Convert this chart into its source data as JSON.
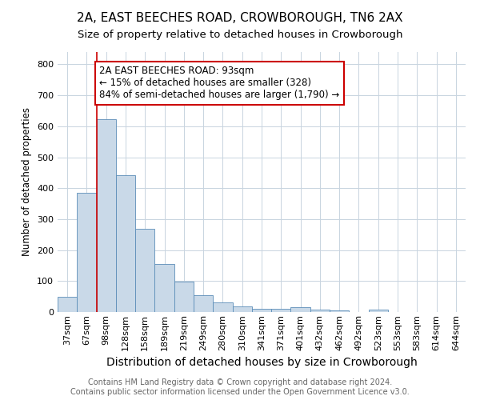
{
  "title": "2A, EAST BEECHES ROAD, CROWBOROUGH, TN6 2AX",
  "subtitle": "Size of property relative to detached houses in Crowborough",
  "xlabel": "Distribution of detached houses by size in Crowborough",
  "ylabel": "Number of detached properties",
  "categories": [
    "37sqm",
    "67sqm",
    "98sqm",
    "128sqm",
    "158sqm",
    "189sqm",
    "219sqm",
    "249sqm",
    "280sqm",
    "310sqm",
    "341sqm",
    "371sqm",
    "401sqm",
    "432sqm",
    "462sqm",
    "492sqm",
    "523sqm",
    "553sqm",
    "583sqm",
    "614sqm",
    "644sqm"
  ],
  "values": [
    50,
    385,
    623,
    443,
    268,
    155,
    98,
    53,
    30,
    18,
    10,
    10,
    15,
    8,
    5,
    0,
    8,
    0,
    0,
    0,
    0
  ],
  "bar_color": "#c9d9e8",
  "bar_edge_color": "#5b8db8",
  "red_line_index": 2,
  "annotation_line1": "2A EAST BEECHES ROAD: 93sqm",
  "annotation_line2": "← 15% of detached houses are smaller (328)",
  "annotation_line3": "84% of semi-detached houses are larger (1,790) →",
  "annotation_box_color": "#ffffff",
  "annotation_box_edge": "#cc0000",
  "footer": "Contains HM Land Registry data © Crown copyright and database right 2024.\nContains public sector information licensed under the Open Government Licence v3.0.",
  "ylim": [
    0,
    840
  ],
  "background_color": "#ffffff",
  "grid_color": "#c8d4e0",
  "title_fontsize": 11,
  "subtitle_fontsize": 9.5,
  "xlabel_fontsize": 10,
  "ylabel_fontsize": 8.5,
  "tick_fontsize": 8,
  "annotation_fontsize": 8.5,
  "footer_fontsize": 7
}
